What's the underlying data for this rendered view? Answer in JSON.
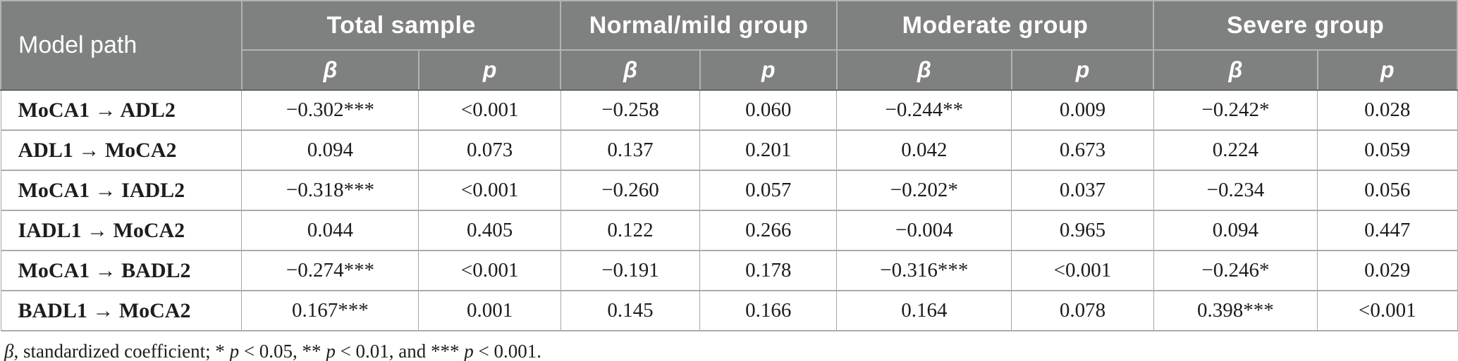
{
  "table": {
    "header": {
      "model_path": "Model path",
      "groups": [
        {
          "label": "Total sample"
        },
        {
          "label": "Normal/mild group"
        },
        {
          "label": "Moderate group"
        },
        {
          "label": "Severe group"
        }
      ],
      "beta": "β",
      "p": "p"
    },
    "rows": [
      {
        "path": "MoCA1 → ADL2",
        "values": [
          "−0.302***",
          "<0.001",
          "−0.258",
          "0.060",
          "−0.244**",
          "0.009",
          "−0.242*",
          "0.028"
        ]
      },
      {
        "path": "ADL1 → MoCA2",
        "values": [
          "0.094",
          "0.073",
          "0.137",
          "0.201",
          "0.042",
          "0.673",
          "0.224",
          "0.059"
        ]
      },
      {
        "path": "MoCA1 → IADL2",
        "values": [
          "−0.318***",
          "<0.001",
          "−0.260",
          "0.057",
          "−0.202*",
          "0.037",
          "−0.234",
          "0.056"
        ]
      },
      {
        "path": "IADL1 → MoCA2",
        "values": [
          "0.044",
          "0.405",
          "0.122",
          "0.266",
          "−0.004",
          "0.965",
          "0.094",
          "0.447"
        ]
      },
      {
        "path": "MoCA1 → BADL2",
        "values": [
          "−0.274***",
          "<0.001",
          "−0.191",
          "0.178",
          "−0.316***",
          "<0.001",
          "−0.246*",
          "0.029"
        ]
      },
      {
        "path": "BADL1 → MoCA2",
        "values": [
          "0.167***",
          "0.001",
          "0.145",
          "0.166",
          "0.164",
          "0.078",
          "0.398***",
          "<0.001"
        ]
      }
    ],
    "footnote_segments": [
      {
        "text": "β",
        "italic": true
      },
      {
        "text": ", standardized coefficient; * ",
        "italic": false
      },
      {
        "text": "p",
        "italic": true
      },
      {
        "text": " < 0.05, ** ",
        "italic": false
      },
      {
        "text": "p",
        "italic": true
      },
      {
        "text": " < 0.01, and *** ",
        "italic": false
      },
      {
        "text": "p",
        "italic": true
      },
      {
        "text": " < 0.001.",
        "italic": false
      }
    ],
    "colors": {
      "header_bg": "#7f8180",
      "header_text": "#ffffff",
      "header_border_light": "#b2b4b3",
      "header_border_dark": "#666868",
      "body_text": "#1d1d1b",
      "body_border": "#a3a5a4"
    }
  }
}
